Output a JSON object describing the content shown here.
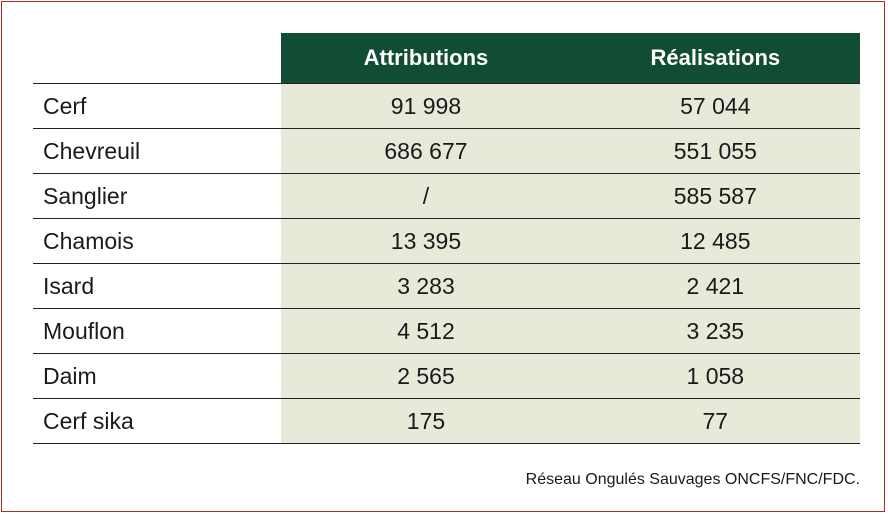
{
  "table": {
    "headers": [
      "",
      "Attributions",
      "Réalisations"
    ],
    "rows": [
      [
        "Cerf",
        "91 998",
        "57 044"
      ],
      [
        "Chevreuil",
        "686 677",
        "551 055"
      ],
      [
        "Sanglier",
        "/",
        "585 587"
      ],
      [
        "Chamois",
        "13 395",
        "12 485"
      ],
      [
        "Isard",
        "3 283",
        "2 421"
      ],
      [
        "Mouflon",
        "4 512",
        "3 235"
      ],
      [
        "Daim",
        "2 565",
        "1 058"
      ],
      [
        "Cerf sika",
        "175",
        "77"
      ]
    ]
  },
  "source": "Réseau Ongulés Sauvages ONCFS/FNC/FDC.",
  "colors": {
    "header_bg": "#114d34",
    "cell_bg": "#e9e9d9",
    "frame": "#b02a2a"
  }
}
